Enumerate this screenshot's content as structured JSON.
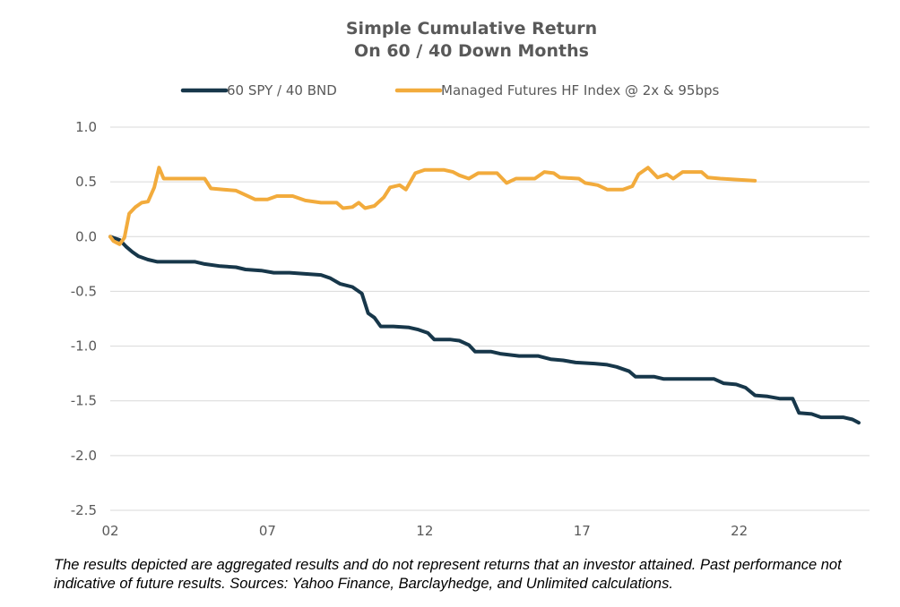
{
  "chart_data": {
    "type": "line",
    "title": [
      "Simple Cumulative Return",
      "On 60 / 40 Down Months"
    ],
    "xlabel": "",
    "ylabel": "",
    "ylim": [
      -2.5,
      1.0
    ],
    "yticks": [
      1.0,
      0.5,
      0.0,
      -0.5,
      -1.0,
      -1.5,
      -2.0,
      -2.5
    ],
    "ytick_labels": [
      "1.0",
      "0.5",
      "0.0",
      "-0.5",
      "-1.0",
      "-1.5",
      "-2.0",
      "-2.5"
    ],
    "xlim": [
      2002,
      2025.8
    ],
    "xticks": [
      2002,
      2007,
      2012,
      2017,
      2022
    ],
    "xtick_labels": [
      "02",
      "07",
      "12",
      "17",
      "22"
    ],
    "grid": "horizontal",
    "legend_position": "top",
    "series": [
      {
        "name": "60 SPY / 40 BND",
        "color": "#17374a",
        "points": [
          [
            2002.0,
            0.0
          ],
          [
            2002.3,
            -0.03
          ],
          [
            2002.5,
            -0.09
          ],
          [
            2002.7,
            -0.14
          ],
          [
            2002.9,
            -0.18
          ],
          [
            2003.2,
            -0.21
          ],
          [
            2003.5,
            -0.23
          ],
          [
            2004.0,
            -0.23
          ],
          [
            2004.7,
            -0.23
          ],
          [
            2005.0,
            -0.25
          ],
          [
            2005.5,
            -0.27
          ],
          [
            2006.0,
            -0.28
          ],
          [
            2006.3,
            -0.3
          ],
          [
            2006.8,
            -0.31
          ],
          [
            2007.2,
            -0.33
          ],
          [
            2007.7,
            -0.33
          ],
          [
            2008.2,
            -0.34
          ],
          [
            2008.7,
            -0.35
          ],
          [
            2009.0,
            -0.38
          ],
          [
            2009.3,
            -0.43
          ],
          [
            2009.7,
            -0.46
          ],
          [
            2010.0,
            -0.52
          ],
          [
            2010.2,
            -0.7
          ],
          [
            2010.4,
            -0.74
          ],
          [
            2010.6,
            -0.82
          ],
          [
            2011.0,
            -0.82
          ],
          [
            2011.5,
            -0.83
          ],
          [
            2011.8,
            -0.85
          ],
          [
            2012.1,
            -0.88
          ],
          [
            2012.3,
            -0.94
          ],
          [
            2012.8,
            -0.94
          ],
          [
            2013.1,
            -0.95
          ],
          [
            2013.4,
            -0.99
          ],
          [
            2013.6,
            -1.05
          ],
          [
            2014.1,
            -1.05
          ],
          [
            2014.4,
            -1.07
          ],
          [
            2015.0,
            -1.09
          ],
          [
            2015.6,
            -1.09
          ],
          [
            2016.0,
            -1.12
          ],
          [
            2016.4,
            -1.13
          ],
          [
            2016.8,
            -1.15
          ],
          [
            2017.4,
            -1.16
          ],
          [
            2017.8,
            -1.17
          ],
          [
            2018.1,
            -1.19
          ],
          [
            2018.5,
            -1.23
          ],
          [
            2018.7,
            -1.28
          ],
          [
            2019.3,
            -1.28
          ],
          [
            2019.6,
            -1.3
          ],
          [
            2020.2,
            -1.3
          ],
          [
            2021.2,
            -1.3
          ],
          [
            2021.5,
            -1.34
          ],
          [
            2021.9,
            -1.35
          ],
          [
            2022.2,
            -1.38
          ],
          [
            2022.5,
            -1.45
          ],
          [
            2022.9,
            -1.46
          ],
          [
            2023.3,
            -1.48
          ],
          [
            2023.7,
            -1.48
          ],
          [
            2023.9,
            -1.61
          ],
          [
            2024.3,
            -1.62
          ],
          [
            2024.6,
            -1.65
          ],
          [
            2025.3,
            -1.65
          ],
          [
            2025.6,
            -1.67
          ],
          [
            2025.8,
            -1.7
          ]
        ]
      },
      {
        "name": "Managed Futures HF Index @ 2x & 95bps",
        "color": "#f2ab3c",
        "points": [
          [
            2002.0,
            0.0
          ],
          [
            2002.1,
            -0.04
          ],
          [
            2002.3,
            -0.07
          ],
          [
            2002.45,
            -0.01
          ],
          [
            2002.6,
            0.21
          ],
          [
            2002.8,
            0.27
          ],
          [
            2003.0,
            0.31
          ],
          [
            2003.2,
            0.32
          ],
          [
            2003.4,
            0.45
          ],
          [
            2003.55,
            0.63
          ],
          [
            2003.7,
            0.53
          ],
          [
            2004.5,
            0.53
          ],
          [
            2005.0,
            0.53
          ],
          [
            2005.2,
            0.44
          ],
          [
            2005.6,
            0.43
          ],
          [
            2006.0,
            0.42
          ],
          [
            2006.3,
            0.38
          ],
          [
            2006.6,
            0.34
          ],
          [
            2007.0,
            0.34
          ],
          [
            2007.3,
            0.37
          ],
          [
            2007.8,
            0.37
          ],
          [
            2008.2,
            0.33
          ],
          [
            2008.7,
            0.31
          ],
          [
            2009.2,
            0.31
          ],
          [
            2009.4,
            0.26
          ],
          [
            2009.7,
            0.27
          ],
          [
            2009.9,
            0.31
          ],
          [
            2010.1,
            0.26
          ],
          [
            2010.4,
            0.28
          ],
          [
            2010.7,
            0.36
          ],
          [
            2010.9,
            0.45
          ],
          [
            2011.2,
            0.47
          ],
          [
            2011.4,
            0.43
          ],
          [
            2011.7,
            0.58
          ],
          [
            2012.0,
            0.61
          ],
          [
            2012.6,
            0.61
          ],
          [
            2012.9,
            0.59
          ],
          [
            2013.1,
            0.56
          ],
          [
            2013.4,
            0.53
          ],
          [
            2013.7,
            0.58
          ],
          [
            2014.3,
            0.58
          ],
          [
            2014.6,
            0.49
          ],
          [
            2014.9,
            0.53
          ],
          [
            2015.5,
            0.53
          ],
          [
            2015.8,
            0.59
          ],
          [
            2016.1,
            0.58
          ],
          [
            2016.3,
            0.54
          ],
          [
            2016.9,
            0.53
          ],
          [
            2017.1,
            0.49
          ],
          [
            2017.5,
            0.47
          ],
          [
            2017.8,
            0.43
          ],
          [
            2018.3,
            0.43
          ],
          [
            2018.6,
            0.46
          ],
          [
            2018.8,
            0.57
          ],
          [
            2019.1,
            0.63
          ],
          [
            2019.4,
            0.54
          ],
          [
            2019.7,
            0.57
          ],
          [
            2019.9,
            0.53
          ],
          [
            2020.2,
            0.59
          ],
          [
            2020.8,
            0.59
          ],
          [
            2021.0,
            0.54
          ],
          [
            2021.4,
            0.53
          ],
          [
            2022.5,
            0.51
          ]
        ]
      }
    ]
  },
  "footnote": "The results depicted are aggregated results and do not represent returns that an investor attained. Past performance not indicative of future results. Sources: Yahoo Finance, Barclayhedge, and Unlimited calculations."
}
